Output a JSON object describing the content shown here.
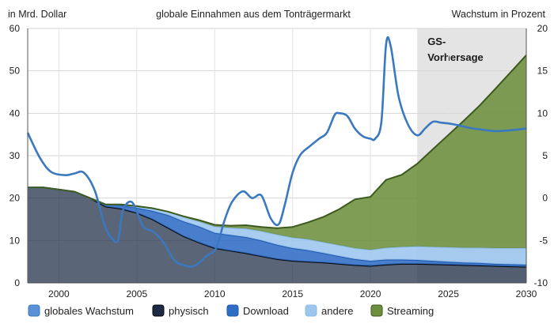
{
  "chart_data": {
    "type": "area",
    "title": "globale Einnahmen aus dem Tonträgermarkt",
    "ylabel": "in Mrd. Dollar",
    "y2label": "Wachstum in Prozent",
    "forecast_label_line1": "GS-",
    "forecast_label_line2": "Vorhersage",
    "forecast_start": 2023,
    "xlim": [
      1998,
      2030
    ],
    "ylim": [
      0,
      60
    ],
    "y2lim": [
      -10,
      20
    ],
    "x_ticks": [
      2000,
      2005,
      2010,
      2015,
      2020,
      2025,
      2030
    ],
    "y_ticks": [
      0,
      10,
      20,
      30,
      40,
      50,
      60
    ],
    "y2_ticks": [
      -10,
      -5,
      0,
      5,
      10,
      15,
      20
    ],
    "grid": true,
    "legend_position": "bottom",
    "x": [
      1998,
      1999,
      2000,
      2001,
      2002,
      2003,
      2004,
      2005,
      2006,
      2007,
      2008,
      2009,
      2010,
      2011,
      2012,
      2013,
      2014,
      2015,
      2016,
      2017,
      2018,
      2019,
      2020,
      2021,
      2022,
      2023,
      2024,
      2025,
      2026,
      2027,
      2028,
      2029,
      2030
    ],
    "stack_series": [
      {
        "key": "physisch",
        "name": "physisch",
        "color": "#1c2a44",
        "values": [
          22.5,
          22.5,
          22,
          21.5,
          20,
          18,
          17.5,
          16.5,
          15,
          13,
          11,
          9.5,
          8.2,
          7.6,
          7,
          6.3,
          5.6,
          5.2,
          5,
          4.8,
          4.5,
          4.2,
          4.0,
          4.3,
          4.5,
          4.5,
          4.4,
          4.3,
          4.2,
          4.1,
          4.0,
          3.9,
          3.8
        ]
      },
      {
        "key": "download",
        "name": "Download",
        "color": "#2f6cc4",
        "values": [
          0,
          0,
          0,
          0,
          0,
          0.5,
          0.8,
          1.2,
          2,
          3,
          3.5,
          3.8,
          3.6,
          3.7,
          3.8,
          3.7,
          3.4,
          3,
          2.7,
          2.2,
          1.8,
          1.4,
          1.2,
          1.2,
          1.0,
          0.9,
          0.8,
          0.7,
          0.6,
          0.6,
          0.5,
          0.5,
          0.5
        ]
      },
      {
        "key": "andere",
        "name": "andere",
        "color": "#9cc6ee",
        "values": [
          0,
          0,
          0,
          0,
          0,
          0,
          0.2,
          0.4,
          0.6,
          0.8,
          1,
          1.2,
          1.5,
          1.7,
          2,
          2.2,
          2.4,
          2.5,
          2.6,
          2.6,
          2.6,
          2.6,
          2.6,
          2.8,
          3,
          3.2,
          3.3,
          3.4,
          3.5,
          3.6,
          3.7,
          3.8,
          3.9
        ]
      },
      {
        "key": "streaming",
        "name": "Streaming",
        "color": "#6e8f3e",
        "values": [
          0,
          0,
          0,
          0,
          0,
          0,
          0,
          0,
          0,
          0,
          0.2,
          0.3,
          0.4,
          0.5,
          0.8,
          1,
          1.5,
          2.5,
          4,
          6,
          8.5,
          11.5,
          12.5,
          16,
          17,
          19.5,
          23,
          26.5,
          30,
          33.5,
          37.5,
          41.5,
          45.5
        ]
      }
    ],
    "growth_series": {
      "key": "wachstum",
      "name": "globales Wachstum",
      "color": "#3a78bf",
      "x": [
        1998,
        1998.8,
        1999.5,
        2000.4,
        2001,
        2001.6,
        2002.3,
        2002.9,
        2003.3,
        2003.8,
        2004.1,
        2004.7,
        2005.4,
        2006.1,
        2006.7,
        2007.4,
        2008,
        2008.7,
        2009.5,
        2010.1,
        2010.6,
        2011.1,
        2011.8,
        2012.4,
        2013,
        2013.6,
        2014.1,
        2014.5,
        2015,
        2015.5,
        2016.1,
        2016.7,
        2017.2,
        2017.7,
        2018,
        2018.5,
        2019,
        2019.5,
        2020,
        2020.3,
        2020.7,
        2021,
        2021.3,
        2021.8,
        2022.4,
        2023,
        2023.5,
        2024,
        2024.5,
        2025,
        2025.6,
        2026.3,
        2027,
        2028,
        2029,
        2030
      ],
      "values": [
        7.7,
        4.7,
        3.1,
        2.7,
        2.9,
        3.0,
        0.9,
        -3.0,
        -4.5,
        -5.0,
        -1.5,
        -0.5,
        -3.3,
        -4.0,
        -5.2,
        -7.3,
        -7.9,
        -8.0,
        -6.8,
        -5.9,
        -2.8,
        -0.5,
        0.8,
        0.0,
        0.3,
        -2.4,
        -3.1,
        -0.8,
        3.0,
        5.1,
        6.1,
        7.0,
        7.7,
        9.8,
        10.0,
        9.7,
        8.2,
        7.3,
        7.0,
        7.0,
        9.0,
        18.1,
        17.9,
        12.0,
        8.7,
        7.4,
        8.2,
        9.0,
        8.9,
        8.8,
        8.6,
        8.3,
        8.1,
        7.9,
        8.0,
        8.2
      ]
    },
    "legend_order": [
      "wachstum",
      "physisch",
      "download",
      "andere",
      "streaming"
    ]
  }
}
